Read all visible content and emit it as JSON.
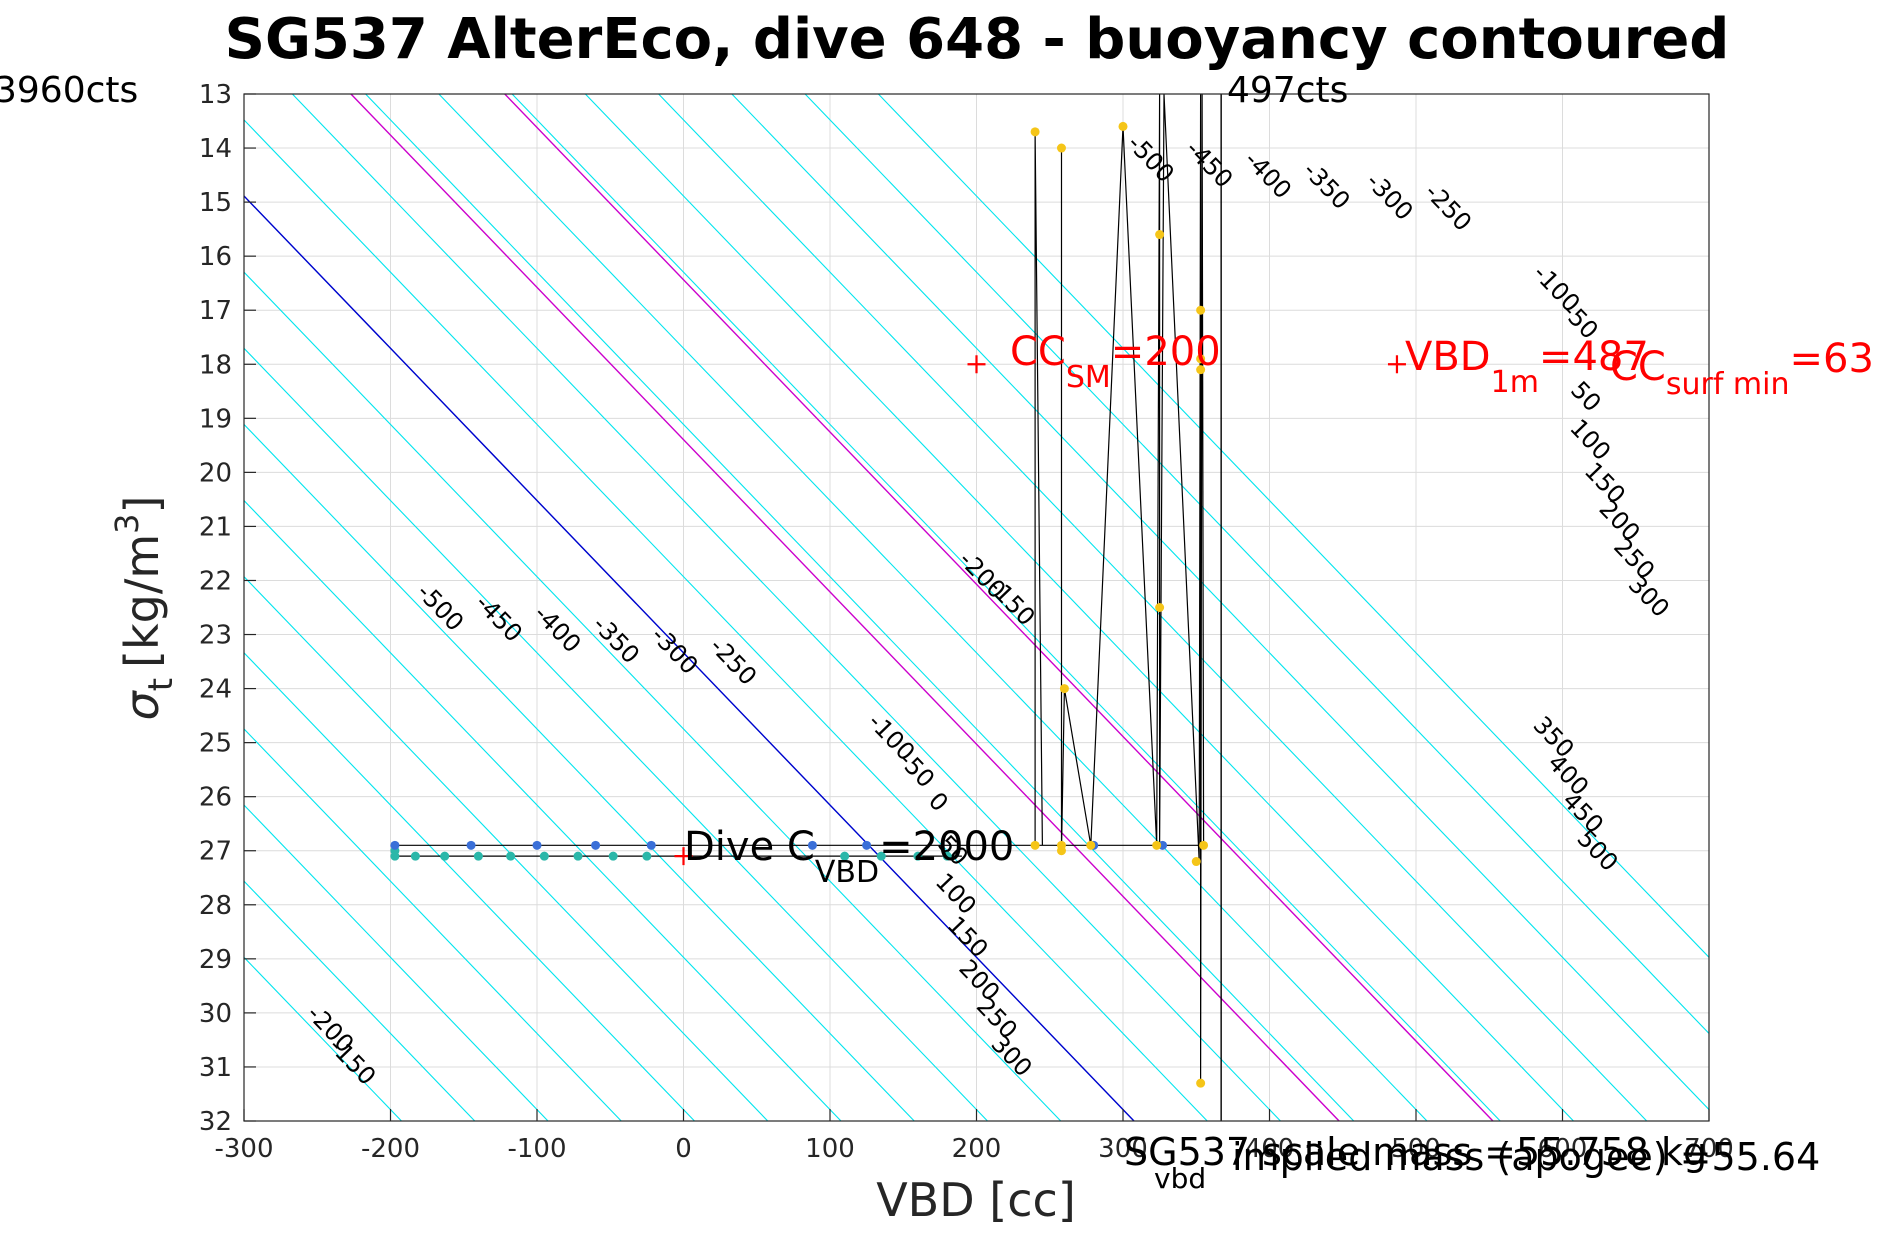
{
  "chart_data": {
    "type": "scatter",
    "title": "SG537 AlterEco, dive 648 - buoyancy contoured",
    "xlabel": "VBD [cc]",
    "ylabel_main": "σ",
    "ylabel_sub": "t",
    "ylabel_units": "[kg/m",
    "ylabel_sup": "3",
    "ylabel_close": "]",
    "xlim": [
      -300,
      700
    ],
    "ylim": [
      13,
      32
    ],
    "y_reversed": true,
    "grid": true,
    "xticks": [
      "-300",
      "-200",
      "-100",
      "0",
      "100",
      "200",
      "300",
      "400",
      "500",
      "600",
      "700"
    ],
    "xtick_values": [
      -300,
      -200,
      -100,
      0,
      100,
      200,
      300,
      400,
      500,
      600,
      700
    ],
    "yticks": [
      "13",
      "14",
      "15",
      "16",
      "17",
      "18",
      "19",
      "20",
      "21",
      "22",
      "23",
      "24",
      "25",
      "26",
      "27",
      "28",
      "29",
      "30",
      "31",
      "32"
    ],
    "ytick_values": [
      13,
      14,
      15,
      16,
      17,
      18,
      19,
      20,
      21,
      22,
      23,
      24,
      25,
      26,
      27,
      28,
      29,
      30,
      31,
      32
    ],
    "contour_slope_cc_per_sigma": 35.5,
    "contour_zero_vbd_at_sigma27": 130,
    "contour_levels": [
      -500,
      -450,
      -400,
      -350,
      -300,
      -250,
      -200,
      -150,
      -100,
      -50,
      0,
      50,
      100,
      150,
      200,
      250,
      300,
      350,
      400,
      450,
      500
    ],
    "contour_labels": [
      {
        "text": "-500",
        "vbd": -170,
        "sigma": 22.6
      },
      {
        "text": "-450",
        "vbd": -130,
        "sigma": 22.8
      },
      {
        "text": "-400",
        "vbd": -90,
        "sigma": 23.0
      },
      {
        "text": "-350",
        "vbd": -50,
        "sigma": 23.2
      },
      {
        "text": "-300",
        "vbd": -10,
        "sigma": 23.4
      },
      {
        "text": "-250",
        "vbd": 30,
        "sigma": 23.6
      },
      {
        "text": "-200",
        "vbd": 200,
        "sigma": 22.0
      },
      {
        "text": "-150",
        "vbd": 220,
        "sigma": 22.5
      },
      {
        "text": "-100",
        "vbd": 138,
        "sigma": 25.0
      },
      {
        "text": "-50",
        "vbd": 155,
        "sigma": 25.6
      },
      {
        "text": "0",
        "vbd": 170,
        "sigma": 26.2
      },
      {
        "text": "50",
        "vbd": 180,
        "sigma": 27.1
      },
      {
        "text": "100",
        "vbd": 182,
        "sigma": 27.9
      },
      {
        "text": "150",
        "vbd": 190,
        "sigma": 28.7
      },
      {
        "text": "200",
        "vbd": 198,
        "sigma": 29.5
      },
      {
        "text": "250",
        "vbd": 210,
        "sigma": 30.2
      },
      {
        "text": "300",
        "vbd": 220,
        "sigma": 30.9
      },
      {
        "text": "-500",
        "vbd": 315,
        "sigma": 14.3
      },
      {
        "text": "-450",
        "vbd": 355,
        "sigma": 14.4
      },
      {
        "text": "-400",
        "vbd": 395,
        "sigma": 14.6
      },
      {
        "text": "-350",
        "vbd": 435,
        "sigma": 14.8
      },
      {
        "text": "-300",
        "vbd": 478,
        "sigma": 15.0
      },
      {
        "text": "-250",
        "vbd": 518,
        "sigma": 15.2
      },
      {
        "text": "-100",
        "vbd": 592,
        "sigma": 16.7
      },
      {
        "text": "-50",
        "vbd": 608,
        "sigma": 17.3
      },
      {
        "text": "50",
        "vbd": 612,
        "sigma": 18.7
      },
      {
        "text": "100",
        "vbd": 615,
        "sigma": 19.5
      },
      {
        "text": "150",
        "vbd": 625,
        "sigma": 20.3
      },
      {
        "text": "200",
        "vbd": 635,
        "sigma": 21.0
      },
      {
        "text": "250",
        "vbd": 645,
        "sigma": 21.7
      },
      {
        "text": "300",
        "vbd": 655,
        "sigma": 22.4
      },
      {
        "text": "350",
        "vbd": 590,
        "sigma": 25.0
      },
      {
        "text": "400",
        "vbd": 600,
        "sigma": 25.7
      },
      {
        "text": "450",
        "vbd": 610,
        "sigma": 26.4
      },
      {
        "text": "500",
        "vbd": 620,
        "sigma": 27.1
      },
      {
        "text": "-200",
        "vbd": -245,
        "sigma": 30.4
      },
      {
        "text": "-150",
        "vbd": -230,
        "sigma": 31.0
      }
    ],
    "reference_lines": [
      {
        "color": "#0000cd",
        "vbd_at_sigma27": 130
      },
      {
        "color": "#cc00cc",
        "vbd_at_sigma27": 270
      },
      {
        "color": "#cc00cc",
        "vbd_at_sigma27": 375
      }
    ],
    "vertical_lines": [
      {
        "vbd": 367
      }
    ],
    "profile_path": [
      {
        "vbd": -197,
        "sigma": 26.9
      },
      {
        "vbd": 240,
        "sigma": 26.9
      },
      {
        "vbd": 240,
        "sigma": 13.7
      },
      {
        "vbd": 245,
        "sigma": 26.9
      },
      {
        "vbd": 258,
        "sigma": 26.9
      },
      {
        "vbd": 258,
        "sigma": 14.0
      },
      {
        "vbd": 258,
        "sigma": 27.0
      },
      {
        "vbd": 260,
        "sigma": 24.0
      },
      {
        "vbd": 278,
        "sigma": 26.9
      },
      {
        "vbd": 300,
        "sigma": 13.6
      },
      {
        "vbd": 323,
        "sigma": 26.9
      },
      {
        "vbd": 325,
        "sigma": 13.0
      },
      {
        "vbd": 325,
        "sigma": 26.9
      },
      {
        "vbd": 328,
        "sigma": 13.0
      },
      {
        "vbd": 352,
        "sigma": 27.2
      },
      {
        "vbd": 353,
        "sigma": 13.0
      },
      {
        "vbd": 353,
        "sigma": 31.3
      },
      {
        "vbd": 354,
        "sigma": 13.0
      },
      {
        "vbd": 355,
        "sigma": 26.9
      },
      {
        "vbd": 240,
        "sigma": 26.9
      }
    ],
    "profile_path_2": [
      {
        "vbd": -197,
        "sigma": 27.1
      },
      {
        "vbd": 190,
        "sigma": 27.1
      }
    ],
    "points_blue": [
      {
        "vbd": -197,
        "sigma": 26.9
      },
      {
        "vbd": -145,
        "sigma": 26.9
      },
      {
        "vbd": -100,
        "sigma": 26.9
      },
      {
        "vbd": -60,
        "sigma": 26.9
      },
      {
        "vbd": -22,
        "sigma": 26.9
      },
      {
        "vbd": 88,
        "sigma": 26.9
      },
      {
        "vbd": 125,
        "sigma": 26.9
      },
      {
        "vbd": 280,
        "sigma": 26.9
      },
      {
        "vbd": 327,
        "sigma": 26.9
      }
    ],
    "points_teal": [
      {
        "vbd": -197,
        "sigma": 27.0
      },
      {
        "vbd": -197,
        "sigma": 27.1
      },
      {
        "vbd": -183,
        "sigma": 27.1
      },
      {
        "vbd": -163,
        "sigma": 27.1
      },
      {
        "vbd": -140,
        "sigma": 27.1
      },
      {
        "vbd": -118,
        "sigma": 27.1
      },
      {
        "vbd": -95,
        "sigma": 27.1
      },
      {
        "vbd": -72,
        "sigma": 27.1
      },
      {
        "vbd": -48,
        "sigma": 27.1
      },
      {
        "vbd": -25,
        "sigma": 27.1
      },
      {
        "vbd": 110,
        "sigma": 27.1
      },
      {
        "vbd": 135,
        "sigma": 27.1
      },
      {
        "vbd": 160,
        "sigma": 27.1
      },
      {
        "vbd": 180,
        "sigma": 27.1
      }
    ],
    "points_yellow": [
      {
        "vbd": 240,
        "sigma": 13.7
      },
      {
        "vbd": 258,
        "sigma": 14.0
      },
      {
        "vbd": 300,
        "sigma": 13.6
      },
      {
        "vbd": 325,
        "sigma": 15.6
      },
      {
        "vbd": 353,
        "sigma": 17.0
      },
      {
        "vbd": 353,
        "sigma": 17.9
      },
      {
        "vbd": 353,
        "sigma": 18.1
      },
      {
        "vbd": 260,
        "sigma": 24.0
      },
      {
        "vbd": 325,
        "sigma": 22.5
      },
      {
        "vbd": 240,
        "sigma": 26.9
      },
      {
        "vbd": 258,
        "sigma": 26.9
      },
      {
        "vbd": 258,
        "sigma": 27.0
      },
      {
        "vbd": 278,
        "sigma": 26.9
      },
      {
        "vbd": 323,
        "sigma": 26.9
      },
      {
        "vbd": 350,
        "sigma": 27.2
      },
      {
        "vbd": 355,
        "sigma": 26.9
      },
      {
        "vbd": 353,
        "sigma": 31.3
      }
    ],
    "markers_red": [
      {
        "vbd": 0,
        "sigma": 27.1
      },
      {
        "vbd": 200,
        "sigma": 18.0
      },
      {
        "vbd": 487,
        "sigma": 18.0
      }
    ],
    "annotations": {
      "left_cts": "3960cts",
      "right_cts": "497cts",
      "cc_sm_main": "CC",
      "cc_sm_sub": "SM",
      "cc_sm_val": "=200",
      "vbd1m_main": "VBD",
      "vbd1m_sub": "1m",
      "vbd1m_val": "=487",
      "ccsurf_main": "CC",
      "ccsurf_sub": "surf min",
      "ccsurf_val": "=63",
      "dive_c_main": "Dive C",
      "dive_c_sub": "VBD",
      "dive_c_val": "=2000",
      "scale_mass": "SG537 scale mass =55.758 kg",
      "implied_mass": "implied mass (apogee) =55.64",
      "c_vbd_sub": "vbd"
    },
    "colors": {
      "contour": "#00e5ee",
      "grid": "#dcdcdc",
      "path": "#000000",
      "annotation_red": "#ff0000",
      "blue_points": "#3a6fd8",
      "teal_points": "#2ab7a9",
      "yellow_points": "#f5c518"
    }
  }
}
